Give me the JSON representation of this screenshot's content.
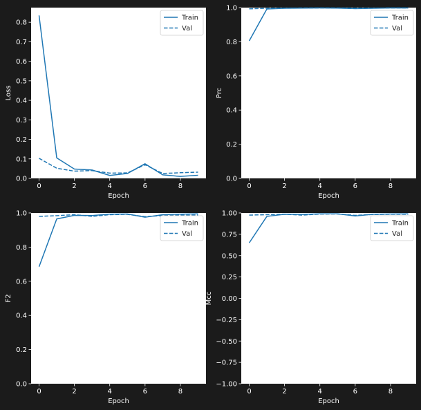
{
  "colors": {
    "background": "#1b1b1b",
    "plot_bg": "#ffffff",
    "line": "#1f77b4",
    "text": "#ffffff"
  },
  "chart_data": [
    {
      "type": "line",
      "xlabel": "Epoch",
      "ylabel": "Loss",
      "xlim": [
        -0.45,
        9.45
      ],
      "ylim": [
        0,
        0.875
      ],
      "xticks": [
        0,
        2,
        4,
        6,
        8
      ],
      "yticks": [
        0.0,
        0.1,
        0.2,
        0.3,
        0.4,
        0.5,
        0.6,
        0.7,
        0.8
      ],
      "ytick_labels": [
        "0.0",
        "0.1",
        "0.2",
        "0.3",
        "0.4",
        "0.5",
        "0.6",
        "0.7",
        "0.8"
      ],
      "legend": "top-right",
      "x": [
        0,
        1,
        2,
        3,
        4,
        5,
        6,
        7,
        8,
        9
      ],
      "series": [
        {
          "name": "Train",
          "style": "solid",
          "values": [
            0.835,
            0.105,
            0.048,
            0.043,
            0.015,
            0.025,
            0.075,
            0.018,
            0.01,
            0.016
          ]
        },
        {
          "name": "Val",
          "style": "dashed",
          "values": [
            0.103,
            0.052,
            0.037,
            0.04,
            0.027,
            0.028,
            0.07,
            0.025,
            0.029,
            0.032
          ]
        }
      ]
    },
    {
      "type": "line",
      "xlabel": "Epoch",
      "ylabel": "Prc",
      "xlim": [
        -0.45,
        9.45
      ],
      "ylim": [
        0,
        1.0
      ],
      "xticks": [
        0,
        2,
        4,
        6,
        8
      ],
      "yticks": [
        0.0,
        0.2,
        0.4,
        0.6,
        0.8,
        1.0
      ],
      "ytick_labels": [
        "0.0",
        "0.2",
        "0.4",
        "0.6",
        "0.8",
        "1.0"
      ],
      "legend": "top-right",
      "x": [
        0,
        1,
        2,
        3,
        4,
        5,
        6,
        7,
        8,
        9
      ],
      "series": [
        {
          "name": "Train",
          "style": "solid",
          "values": [
            0.805,
            0.992,
            0.996,
            0.997,
            0.998,
            0.997,
            0.994,
            0.996,
            0.998,
            0.998
          ]
        },
        {
          "name": "Val",
          "style": "dashed",
          "values": [
            0.993,
            0.996,
            0.997,
            0.998,
            0.998,
            0.998,
            0.997,
            0.997,
            0.998,
            0.998
          ]
        }
      ]
    },
    {
      "type": "line",
      "xlabel": "Epoch",
      "ylabel": "F2",
      "xlim": [
        -0.45,
        9.45
      ],
      "ylim": [
        0,
        1.0
      ],
      "xticks": [
        0,
        2,
        4,
        6,
        8
      ],
      "yticks": [
        0.0,
        0.2,
        0.4,
        0.6,
        0.8,
        1.0
      ],
      "ytick_labels": [
        "0.0",
        "0.2",
        "0.4",
        "0.6",
        "0.8",
        "1.0"
      ],
      "legend": "top-right",
      "x": [
        0,
        1,
        2,
        3,
        4,
        5,
        6,
        7,
        8,
        9
      ],
      "series": [
        {
          "name": "Train",
          "style": "solid",
          "values": [
            0.685,
            0.965,
            0.986,
            0.985,
            0.993,
            0.994,
            0.975,
            0.99,
            0.993,
            0.995
          ]
        },
        {
          "name": "Val",
          "style": "dashed",
          "values": [
            0.98,
            0.984,
            0.99,
            0.98,
            0.99,
            0.992,
            0.978,
            0.985,
            0.987,
            0.988
          ]
        }
      ]
    },
    {
      "type": "line",
      "xlabel": "Epoch",
      "ylabel": "Mcc",
      "xlim": [
        -0.45,
        9.45
      ],
      "ylim": [
        -1.0,
        1.0
      ],
      "xticks": [
        0,
        2,
        4,
        6,
        8
      ],
      "yticks": [
        -1.0,
        -0.75,
        -0.5,
        -0.25,
        0.0,
        0.25,
        0.5,
        0.75,
        1.0
      ],
      "ytick_labels": [
        "−1.00",
        "−0.75",
        "−0.50",
        "−0.25",
        "0.00",
        "0.25",
        "0.50",
        "0.75",
        "1.00"
      ],
      "legend": "top-right",
      "x": [
        0,
        1,
        2,
        3,
        4,
        5,
        6,
        7,
        8,
        9
      ],
      "series": [
        {
          "name": "Train",
          "style": "solid",
          "values": [
            0.65,
            0.96,
            0.985,
            0.983,
            0.99,
            0.99,
            0.965,
            0.985,
            0.988,
            0.99
          ]
        },
        {
          "name": "Val",
          "style": "dashed",
          "values": [
            0.975,
            0.98,
            0.985,
            0.975,
            0.987,
            0.988,
            0.972,
            0.982,
            0.985,
            0.985
          ]
        }
      ]
    }
  ]
}
